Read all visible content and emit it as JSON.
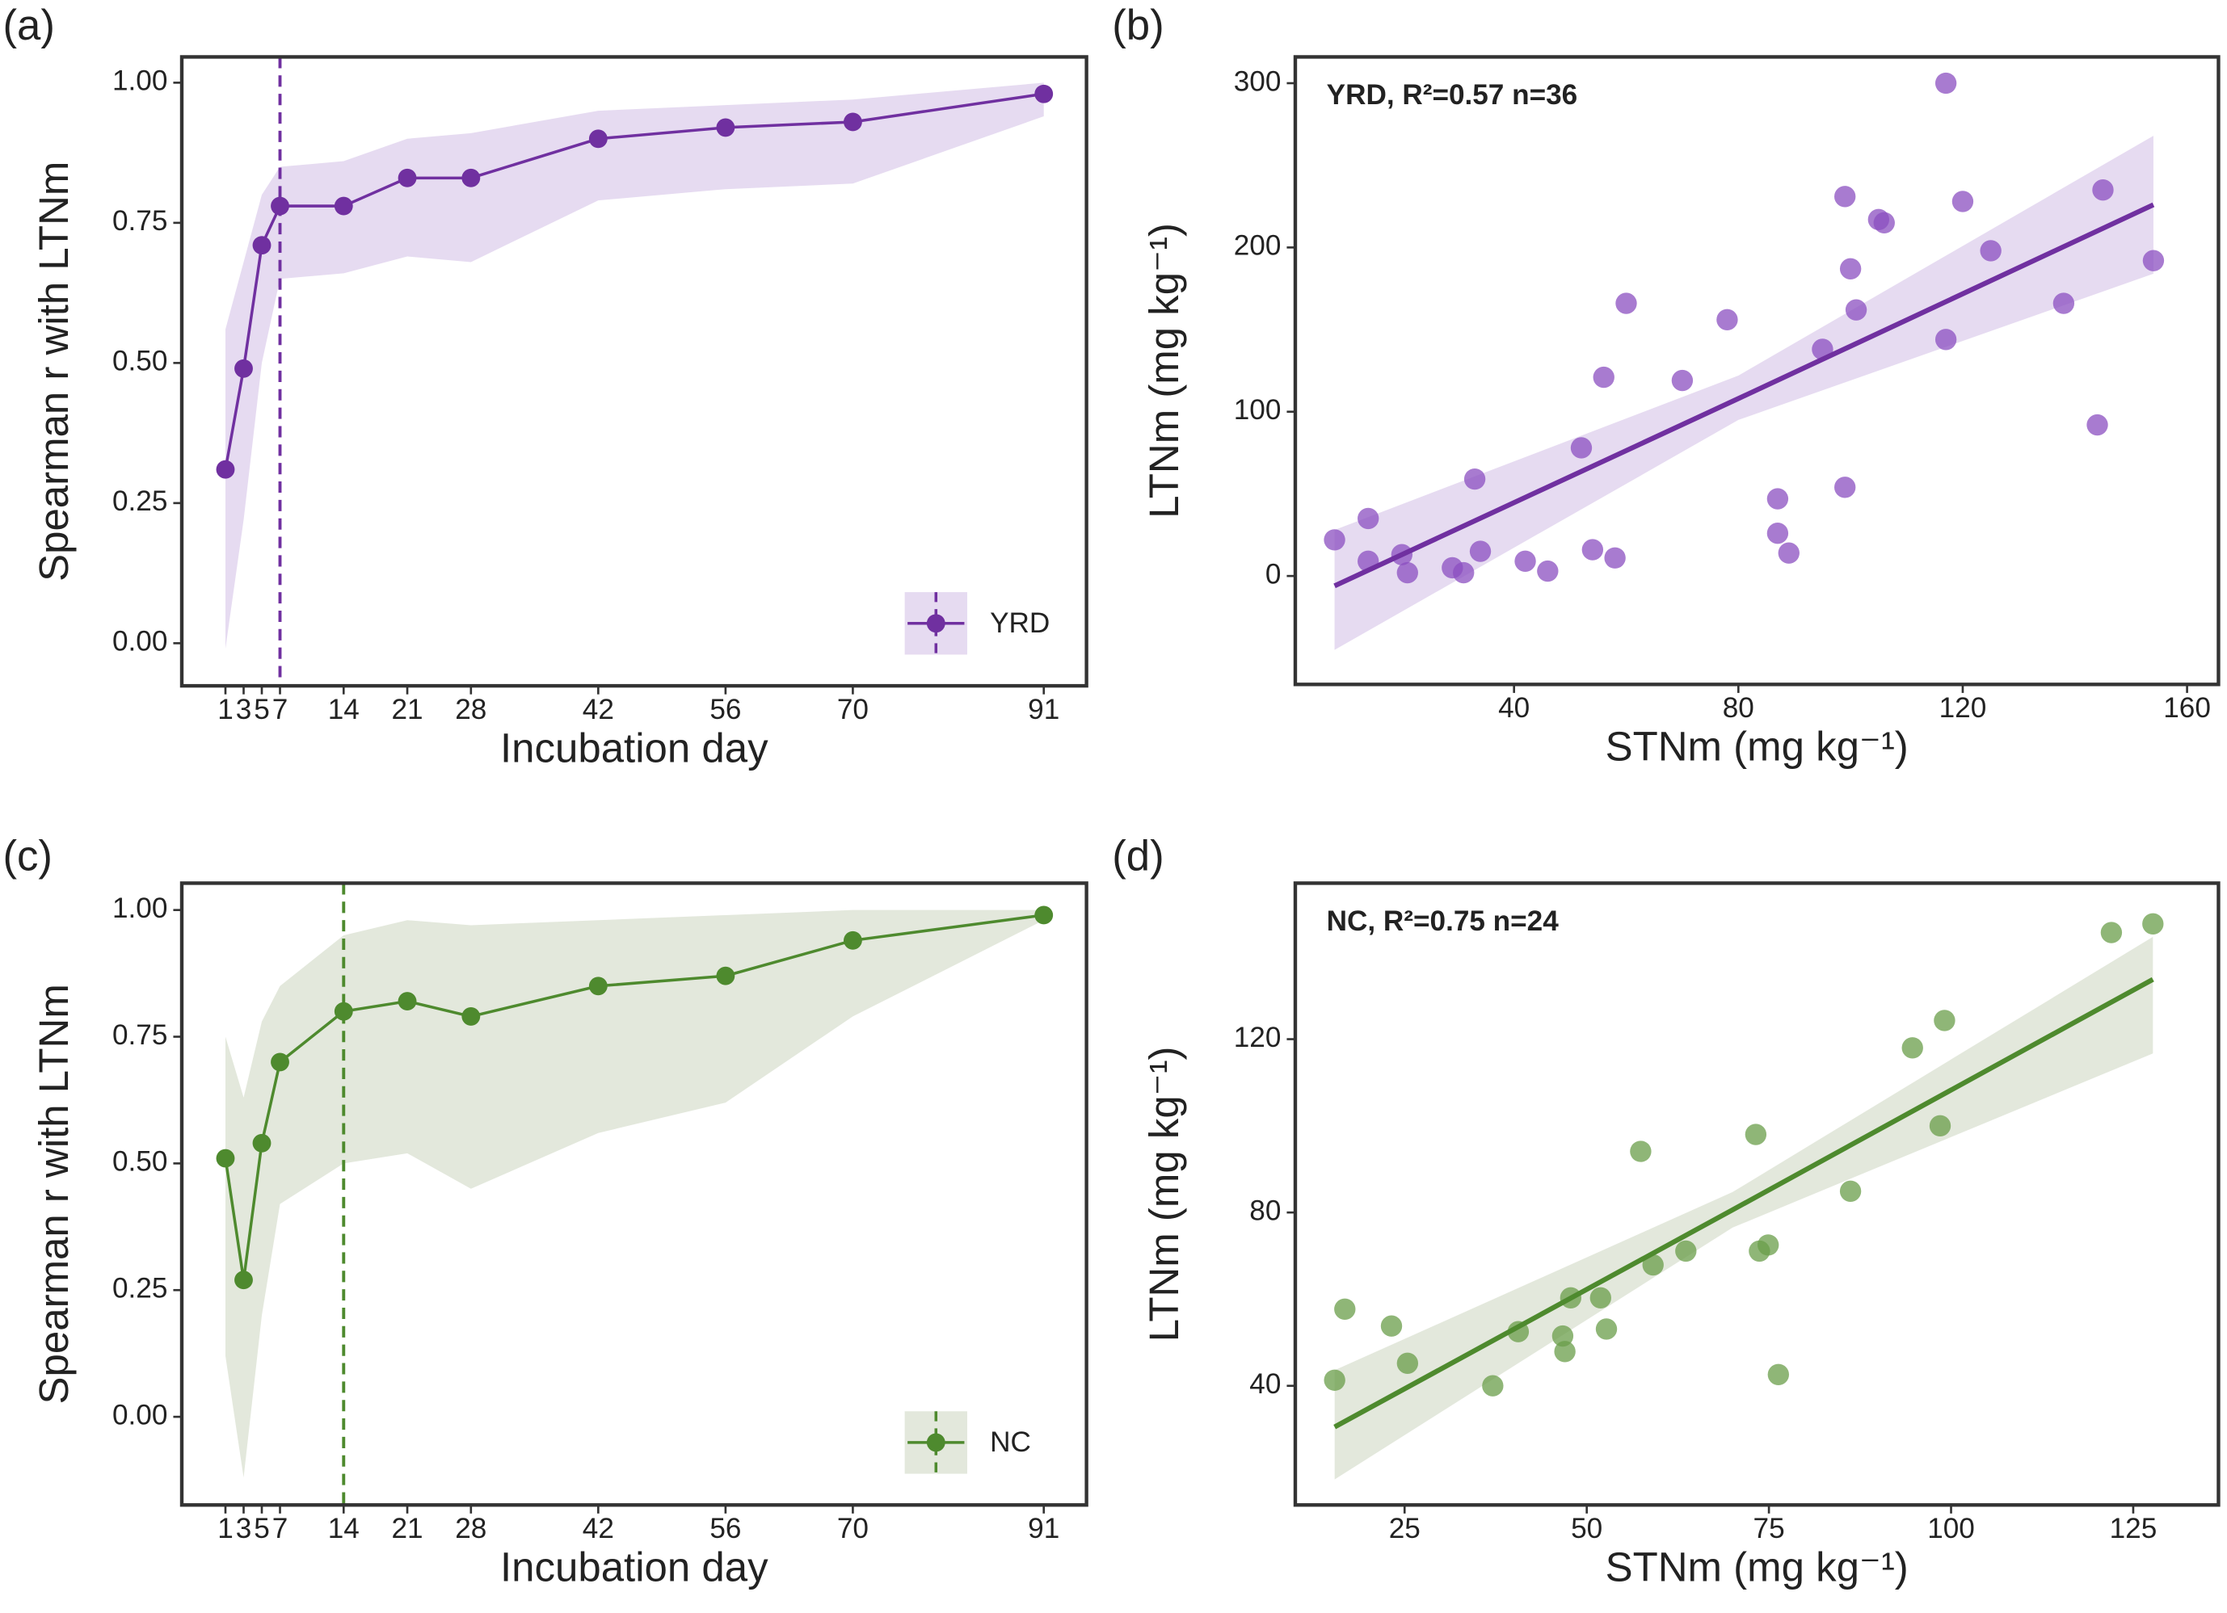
{
  "chart_data": [
    {
      "panel_label": "(a)",
      "type": "line",
      "xlabel": "Incubation day",
      "ylabel": "Spearman r with LTNm",
      "x": [
        1,
        3,
        5,
        7,
        14,
        21,
        28,
        42,
        56,
        70,
        91
      ],
      "series": [
        {
          "name": "YRD",
          "color": "#7030a0",
          "values": [
            0.31,
            0.49,
            0.71,
            0.78,
            0.78,
            0.83,
            0.83,
            0.9,
            0.92,
            0.93,
            0.98
          ]
        }
      ],
      "band": {
        "color": "#e6dbf1",
        "lower": [
          -0.01,
          0.22,
          0.5,
          0.65,
          0.66,
          0.69,
          0.68,
          0.79,
          0.81,
          0.82,
          0.94
        ],
        "upper": [
          0.56,
          0.68,
          0.8,
          0.85,
          0.86,
          0.9,
          0.91,
          0.95,
          0.96,
          0.97,
          1.0
        ]
      },
      "vline": 7,
      "legend": "bottom-right",
      "xlim": [
        -3.8,
        95.7
      ],
      "xticks": [
        1,
        3,
        5,
        7,
        14,
        21,
        28,
        42,
        56,
        70,
        91
      ],
      "ylim": [
        -0.076,
        1.046
      ],
      "yticks": [
        {
          "value": 0,
          "label": "0.00"
        },
        {
          "value": 0.25,
          "label": "0.25"
        },
        {
          "value": 0.5,
          "label": "0.50"
        },
        {
          "value": 0.75,
          "label": "0.75"
        },
        {
          "value": 1,
          "label": "1.00"
        }
      ]
    },
    {
      "panel_label": "(b)",
      "type": "scatter",
      "annotation": "YRD, R²=0.57 n=36",
      "xlabel": "STNm (mg kg⁻¹)",
      "ylabel": "LTNm (mg kg⁻¹)",
      "color": "#8b4fc0",
      "x": [
        8,
        14,
        14,
        20,
        21,
        29,
        31,
        33,
        34,
        42,
        46,
        52,
        54,
        56,
        58,
        60,
        70,
        78,
        87,
        87,
        89,
        95,
        99,
        99,
        100,
        101,
        105,
        106,
        117,
        117,
        120,
        125,
        138,
        144,
        145,
        154
      ],
      "values": [
        22,
        35,
        9,
        13,
        2,
        5,
        2,
        59,
        15,
        9,
        3,
        78,
        16,
        121,
        11,
        166,
        119,
        156,
        26,
        47,
        14,
        138,
        231,
        54,
        187,
        162,
        217,
        215,
        300,
        144,
        228,
        198,
        166,
        92,
        235,
        192
      ],
      "fit": {
        "color": "#7030a0",
        "band_color": "#e6dbf1",
        "x": [
          8,
          80,
          154
        ],
        "values": [
          -6,
          108,
          226
        ],
        "lower": [
          -45,
          95,
          184
        ],
        "upper": [
          28,
          122,
          268
        ]
      },
      "xlim": [
        1,
        165.6
      ],
      "xticks": [
        40,
        80,
        120,
        160
      ],
      "ylim": [
        -66,
        316
      ],
      "yticks": [
        0,
        100,
        200,
        300
      ]
    },
    {
      "panel_label": "(c)",
      "type": "line",
      "xlabel": "Incubation day",
      "ylabel": "Spearman r with LTNm",
      "x": [
        1,
        3,
        5,
        7,
        14,
        21,
        28,
        42,
        56,
        70,
        91
      ],
      "series": [
        {
          "name": "NC",
          "color": "#4e8a2e",
          "values": [
            0.51,
            0.27,
            0.54,
            0.7,
            0.8,
            0.82,
            0.79,
            0.85,
            0.87,
            0.94,
            0.99
          ]
        }
      ],
      "band": {
        "color": "#e3e8dc",
        "lower": [
          0.12,
          -0.12,
          0.2,
          0.42,
          0.5,
          0.52,
          0.45,
          0.56,
          0.62,
          0.79,
          0.98
        ],
        "upper": [
          0.75,
          0.63,
          0.78,
          0.85,
          0.95,
          0.98,
          0.97,
          0.98,
          0.99,
          1.0,
          1.0
        ]
      },
      "vline": 14,
      "legend": "bottom-right",
      "xlim": [
        -3.8,
        95.7
      ],
      "xticks": [
        1,
        3,
        5,
        7,
        14,
        21,
        28,
        42,
        56,
        70,
        91
      ],
      "ylim": [
        -0.174,
        1.053
      ],
      "yticks": [
        {
          "value": 0,
          "label": "0.00"
        },
        {
          "value": 0.25,
          "label": "0.25"
        },
        {
          "value": 0.5,
          "label": "0.50"
        },
        {
          "value": 0.75,
          "label": "0.75"
        },
        {
          "value": 1,
          "label": "1.00"
        }
      ]
    },
    {
      "panel_label": "(d)",
      "type": "scatter",
      "annotation": "NC, R²=0.75 n=24",
      "xlabel": "STNm (mg kg⁻¹)",
      "ylabel": "LTNm (mg kg⁻¹)",
      "color": "#6a9e4a",
      "x": [
        15.4,
        16.8,
        23.2,
        25.4,
        37.1,
        40.6,
        46.7,
        47.0,
        47.8,
        51.9,
        52.7,
        57.4,
        59.1,
        63.6,
        73.2,
        73.7,
        74.9,
        76.3,
        86.2,
        94.7,
        98.5,
        99.1,
        122,
        127.7
      ],
      "values": [
        41.3,
        57.7,
        53.8,
        45.2,
        40,
        52.5,
        51.5,
        47.9,
        60.3,
        60.3,
        53.1,
        94.1,
        67.9,
        71.1,
        98,
        71.1,
        72.5,
        42.6,
        84.9,
        118,
        100,
        124.3,
        144.6,
        146.6
      ],
      "fit": {
        "color": "#4e8a2e",
        "band_color": "#e3e8dc",
        "x": [
          15.4,
          70,
          127.7
        ],
        "values": [
          30.5,
          80.6,
          133.8
        ],
        "lower": [
          18.4,
          76.5,
          116.7
        ],
        "upper": [
          43.6,
          84.7,
          143.6
        ]
      },
      "xlim": [
        10,
        136.7
      ],
      "xticks": [
        25,
        50,
        75,
        100,
        125
      ],
      "ylim": [
        12.5,
        156
      ],
      "yticks": [
        40,
        80,
        120
      ]
    }
  ]
}
